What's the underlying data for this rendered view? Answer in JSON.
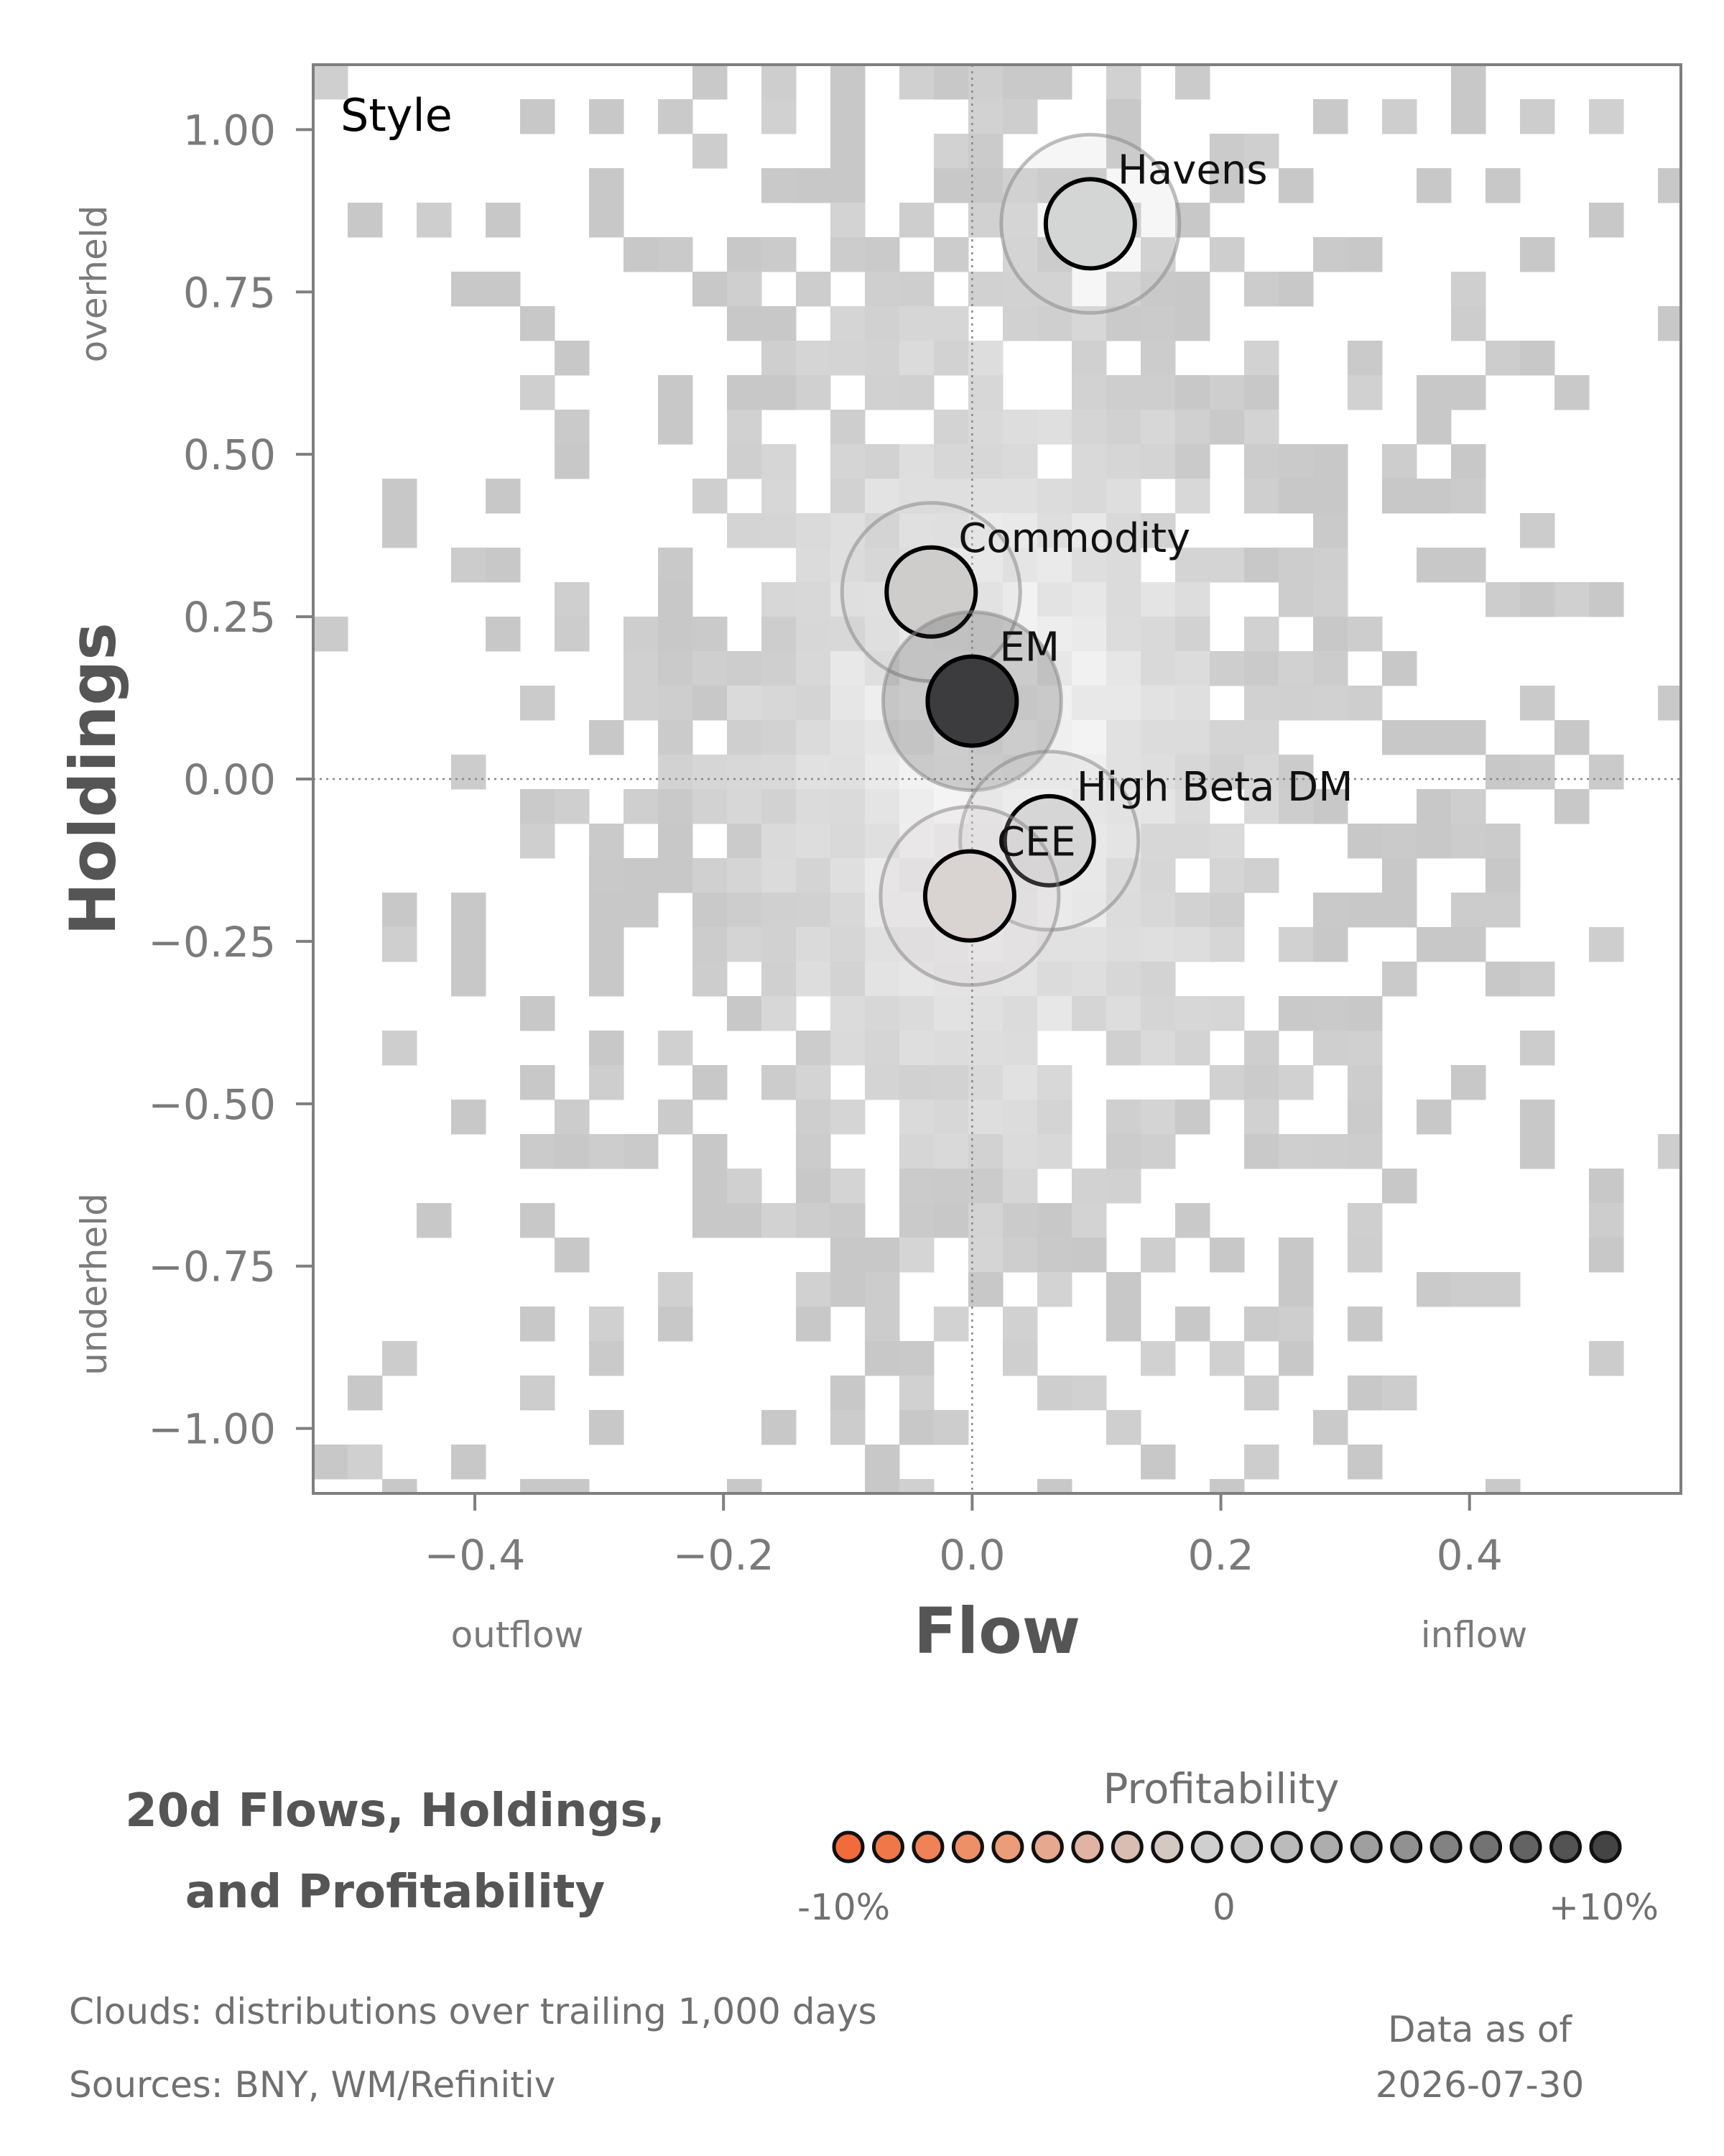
{
  "chart_data": {
    "type": "scatter",
    "panel_label": "Style",
    "xlabel": "Flow",
    "ylabel": "Holdings",
    "x_hint_left": "outflow",
    "x_hint_right": "inflow",
    "y_hint_top": "overheld",
    "y_hint_bottom": "underheld",
    "xlim": [
      -0.53,
      0.57
    ],
    "ylim": [
      -1.1,
      1.1
    ],
    "xticks": [
      -0.4,
      -0.2,
      0.0,
      0.2,
      0.4
    ],
    "xtick_labels": [
      "−0.4",
      "−0.2",
      "0.0",
      "0.2",
      "0.4"
    ],
    "yticks": [
      1.0,
      0.75,
      0.5,
      0.25,
      0.0,
      -0.25,
      -0.5,
      -0.75,
      -1.0
    ],
    "ytick_labels": [
      "1.00",
      "0.75",
      "0.50",
      "0.25",
      "0.00",
      "−0.25",
      "−0.50",
      "−0.75",
      "−1.00"
    ],
    "reference_lines": {
      "x": 0.0,
      "y": 0.0
    },
    "grid": false,
    "points": [
      {
        "label": "Havens",
        "x": 0.095,
        "y": 0.855,
        "profitability": 0.0,
        "color": "#d4d6d6"
      },
      {
        "label": "Commodity",
        "x": -0.033,
        "y": 0.288,
        "profitability": 0.0,
        "color": "#cfcdcc"
      },
      {
        "label": "EM",
        "x": 0.0,
        "y": 0.12,
        "profitability": 0.1,
        "color": "#3c3c3e"
      },
      {
        "label": "High Beta DM",
        "x": 0.062,
        "y": -0.095,
        "profitability": 0.005,
        "color": "#d6d6d6"
      },
      {
        "label": "CEE",
        "x": -0.002,
        "y": -0.18,
        "profitability": -0.005,
        "color": "#d9d3d1"
      }
    ],
    "cloud": {
      "description_text": "Clouds:  distributions over trailing 1,000 days",
      "base_color": "#c8c8c8",
      "light_color": "#f6f6f6"
    }
  },
  "footer": {
    "title_line1": "20d Flows, Holdings,",
    "title_line2": "and Profitability",
    "clouds_note": "Clouds:  distributions over trailing 1,000 days",
    "sources_note": "Sources:  BNY, WM/Refinitiv",
    "asof_line1": "Data as of",
    "asof_line2": "2026-07-30"
  },
  "legend": {
    "title": "Profitability",
    "min_label": "-10%",
    "mid_label": "0",
    "max_label": "+10%",
    "colors": [
      "#f26b3a",
      "#f07748",
      "#ef8357",
      "#ed9068",
      "#eb9c79",
      "#e6a88e",
      "#e0b3a2",
      "#d9bdb3",
      "#d4c8c3",
      "#cfcfcf",
      "#c6c6c6",
      "#bbbbbb",
      "#adadad",
      "#9f9f9f",
      "#919191",
      "#828282",
      "#737373",
      "#636363",
      "#535353",
      "#444444"
    ]
  }
}
